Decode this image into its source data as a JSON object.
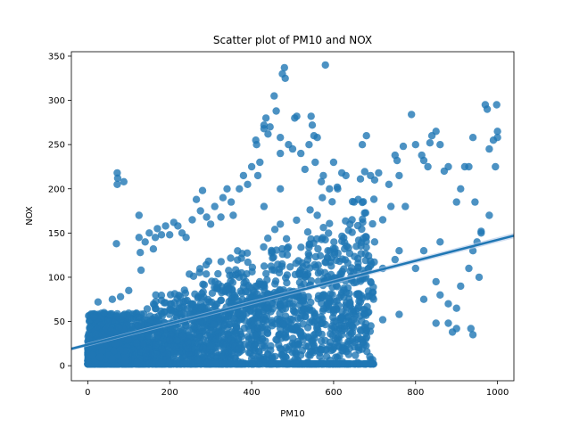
{
  "chart_data": {
    "type": "scatter",
    "title": "Scatter plot of PM10 and NOX",
    "xlabel": "PM10",
    "ylabel": "NOX",
    "xlim": [
      -40,
      1040
    ],
    "ylim": [
      -17,
      355
    ],
    "xticks": [
      0,
      200,
      400,
      600,
      800,
      1000
    ],
    "yticks": [
      0,
      50,
      100,
      150,
      200,
      250,
      300,
      350
    ],
    "grid": false,
    "point_color": "#1f77b4",
    "regression": {
      "slope": 0.1185,
      "intercept": 23.8,
      "x_range": [
        -40,
        1040
      ],
      "ci_color": "#aec7e8"
    },
    "points": [
      [
        5,
        52
      ],
      [
        15,
        55
      ],
      [
        25,
        72
      ],
      [
        40,
        60
      ],
      [
        60,
        75
      ],
      [
        80,
        78
      ],
      [
        100,
        85
      ],
      [
        70,
        138
      ],
      [
        72,
        218
      ],
      [
        73,
        212
      ],
      [
        72,
        205
      ],
      [
        88,
        208
      ],
      [
        125,
        170
      ],
      [
        130,
        108
      ],
      [
        128,
        128
      ],
      [
        140,
        140
      ],
      [
        125,
        145
      ],
      [
        150,
        150
      ],
      [
        160,
        132
      ],
      [
        165,
        145
      ],
      [
        170,
        155
      ],
      [
        180,
        148
      ],
      [
        190,
        158
      ],
      [
        200,
        148
      ],
      [
        210,
        162
      ],
      [
        220,
        158
      ],
      [
        230,
        150
      ],
      [
        240,
        145
      ],
      [
        255,
        165
      ],
      [
        265,
        188
      ],
      [
        275,
        175
      ],
      [
        280,
        198
      ],
      [
        290,
        168
      ],
      [
        300,
        160
      ],
      [
        310,
        180
      ],
      [
        325,
        168
      ],
      [
        330,
        190
      ],
      [
        340,
        200
      ],
      [
        350,
        185
      ],
      [
        355,
        170
      ],
      [
        370,
        200
      ],
      [
        380,
        215
      ],
      [
        390,
        205
      ],
      [
        400,
        225
      ],
      [
        410,
        255
      ],
      [
        412,
        250
      ],
      [
        415,
        215
      ],
      [
        420,
        230
      ],
      [
        430,
        272
      ],
      [
        435,
        280
      ],
      [
        430,
        268
      ],
      [
        440,
        262
      ],
      [
        445,
        270
      ],
      [
        455,
        305
      ],
      [
        460,
        288
      ],
      [
        470,
        240
      ],
      [
        475,
        330
      ],
      [
        480,
        337
      ],
      [
        482,
        325
      ],
      [
        470,
        258
      ],
      [
        490,
        250
      ],
      [
        500,
        245
      ],
      [
        505,
        280
      ],
      [
        510,
        282
      ],
      [
        520,
        240
      ],
      [
        530,
        222
      ],
      [
        540,
        250
      ],
      [
        545,
        282
      ],
      [
        548,
        272
      ],
      [
        552,
        260
      ],
      [
        555,
        230
      ],
      [
        560,
        258
      ],
      [
        570,
        208
      ],
      [
        575,
        215
      ],
      [
        590,
        200
      ],
      [
        600,
        230
      ],
      [
        610,
        200
      ],
      [
        620,
        218
      ],
      [
        630,
        215
      ],
      [
        645,
        165
      ],
      [
        650,
        185
      ],
      [
        660,
        188
      ],
      [
        670,
        250
      ],
      [
        680,
        260
      ],
      [
        690,
        215
      ],
      [
        700,
        210
      ],
      [
        710,
        218
      ],
      [
        720,
        165
      ],
      [
        735,
        205
      ],
      [
        740,
        180
      ],
      [
        750,
        238
      ],
      [
        755,
        232
      ],
      [
        760,
        215
      ],
      [
        770,
        248
      ],
      [
        775,
        180
      ],
      [
        790,
        284
      ],
      [
        800,
        250
      ],
      [
        815,
        238
      ],
      [
        820,
        232
      ],
      [
        830,
        225
      ],
      [
        835,
        252
      ],
      [
        840,
        260
      ],
      [
        850,
        265
      ],
      [
        860,
        250
      ],
      [
        870,
        220
      ],
      [
        880,
        225
      ],
      [
        900,
        185
      ],
      [
        910,
        200
      ],
      [
        920,
        225
      ],
      [
        930,
        225
      ],
      [
        940,
        258
      ],
      [
        945,
        185
      ],
      [
        950,
        140
      ],
      [
        955,
        100
      ],
      [
        960,
        152
      ],
      [
        970,
        295
      ],
      [
        975,
        290
      ],
      [
        980,
        245
      ],
      [
        990,
        255
      ],
      [
        995,
        225
      ],
      [
        998,
        295
      ],
      [
        1000,
        265
      ],
      [
        1000,
        258
      ],
      [
        940,
        35
      ],
      [
        935,
        42
      ],
      [
        890,
        38
      ],
      [
        880,
        48
      ],
      [
        900,
        42
      ],
      [
        850,
        48
      ],
      [
        820,
        75
      ],
      [
        760,
        58
      ],
      [
        720,
        52
      ],
      [
        680,
        40
      ],
      [
        660,
        32
      ],
      [
        640,
        28
      ],
      [
        610,
        22
      ],
      [
        590,
        22
      ],
      [
        570,
        18
      ],
      [
        550,
        15
      ],
      [
        520,
        12
      ],
      [
        500,
        15
      ],
      [
        475,
        12
      ],
      [
        450,
        10
      ],
      [
        420,
        9
      ],
      [
        400,
        8
      ],
      [
        360,
        9
      ],
      [
        300,
        10
      ],
      [
        250,
        7
      ],
      [
        200,
        5
      ],
      [
        180,
        3
      ],
      [
        150,
        2
      ],
      [
        120,
        4
      ],
      [
        90,
        5
      ],
      [
        60,
        8
      ],
      [
        30,
        10
      ],
      [
        10,
        12
      ],
      [
        580,
        340
      ],
      [
        470,
        200
      ],
      [
        560,
        170
      ],
      [
        470,
        160
      ],
      [
        430,
        180
      ],
      [
        640,
        160
      ],
      [
        700,
        140
      ],
      [
        750,
        120
      ],
      [
        800,
        110
      ],
      [
        850,
        95
      ],
      [
        860,
        80
      ],
      [
        880,
        70
      ],
      [
        900,
        65
      ],
      [
        910,
        90
      ],
      [
        930,
        110
      ],
      [
        940,
        130
      ],
      [
        960,
        150
      ],
      [
        980,
        170
      ],
      [
        860,
        140
      ],
      [
        820,
        130
      ],
      [
        760,
        130
      ],
      [
        720,
        110
      ],
      [
        690,
        95
      ],
      [
        660,
        80
      ],
      [
        640,
        70
      ],
      [
        600,
        60
      ],
      [
        560,
        45
      ],
      [
        520,
        38
      ],
      [
        480,
        35
      ]
    ]
  }
}
